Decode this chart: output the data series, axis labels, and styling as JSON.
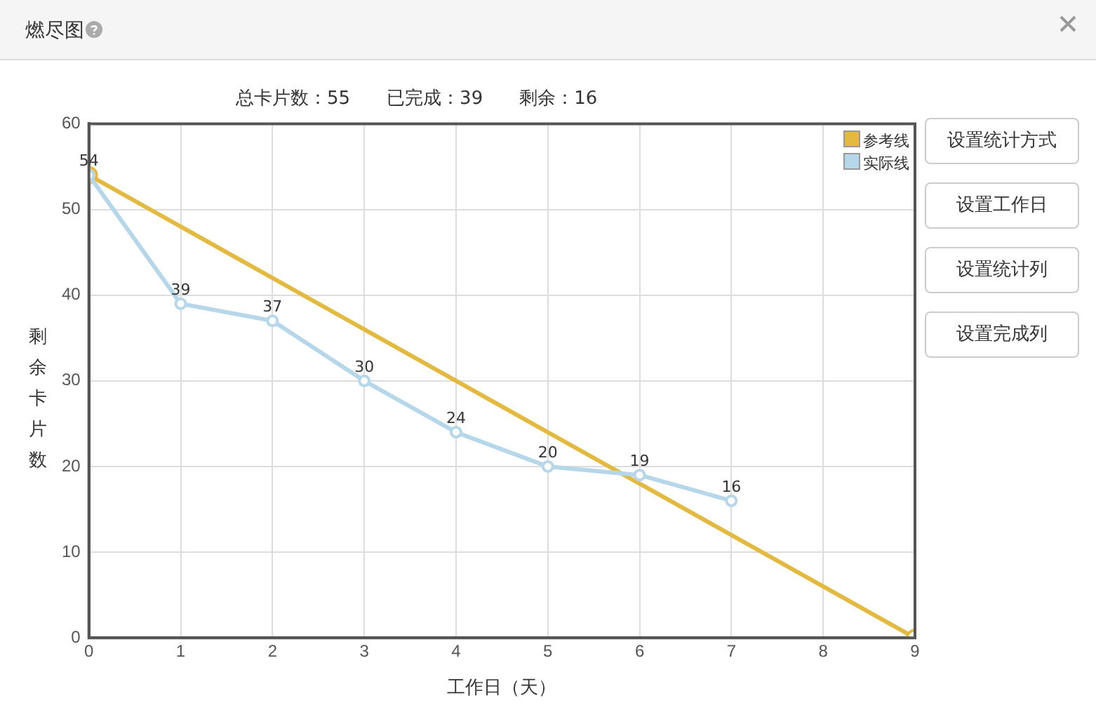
{
  "chart_data": {
    "type": "line",
    "title": "燃尽图",
    "subtitle": "总卡片数：55　　已完成：39　　剩余：16",
    "xlabel": "工作日（天）",
    "ylabel": "剩余卡片数",
    "annotations": [
      "设置统计方式",
      "设置工作日",
      "设置统计列",
      "设置完成列"
    ],
    "xlim": [
      0,
      9
    ],
    "xticks": [
      0,
      1,
      2,
      3,
      4,
      5,
      6,
      7,
      8,
      9
    ],
    "ylim": [
      0,
      60
    ],
    "yticks": [
      0,
      10,
      20,
      30,
      40,
      50,
      60
    ],
    "grid": true,
    "legend": "top right",
    "marker": "circle",
    "line_style": "solid",
    "series": [
      {
        "name": "参考线",
        "color": "#e3b93f",
        "x": [
          0,
          9
        ],
        "values": [
          54,
          0
        ]
      },
      {
        "name": "实际线",
        "color": "#b6d6ea",
        "x": [
          0,
          1,
          2,
          3,
          4,
          5,
          6,
          7
        ],
        "values": [
          54,
          39,
          37,
          30,
          24,
          20,
          19,
          16
        ],
        "value_labels": [
          "54",
          "39",
          "37",
          "30",
          "24",
          "20",
          "19",
          "16"
        ]
      }
    ]
  }
}
